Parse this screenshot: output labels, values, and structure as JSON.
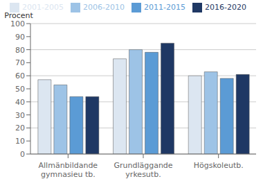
{
  "chart_data": {
    "type": "bar",
    "ylabel": "Procent",
    "categories": [
      "Allmänbildande\ngymnasieu tb.",
      "Grundläggande\nyrkesutb.",
      "Högskoleutb."
    ],
    "series": [
      {
        "name": "2001-2005",
        "color": "#dce6f1",
        "values": [
          57,
          73,
          60
        ]
      },
      {
        "name": "2006-2010",
        "color": "#9dc3e6",
        "values": [
          53,
          80,
          63
        ]
      },
      {
        "name": "2011-2015",
        "color": "#5b9bd5",
        "values": [
          44,
          78,
          58
        ]
      },
      {
        "name": "2016-2020",
        "color": "#1f3864",
        "values": [
          44,
          85,
          61
        ]
      }
    ],
    "ylim": [
      0,
      100
    ],
    "yticks": [
      0,
      10,
      20,
      30,
      40,
      50,
      60,
      70,
      80,
      90,
      100
    ],
    "grid": true,
    "legend": "top"
  }
}
